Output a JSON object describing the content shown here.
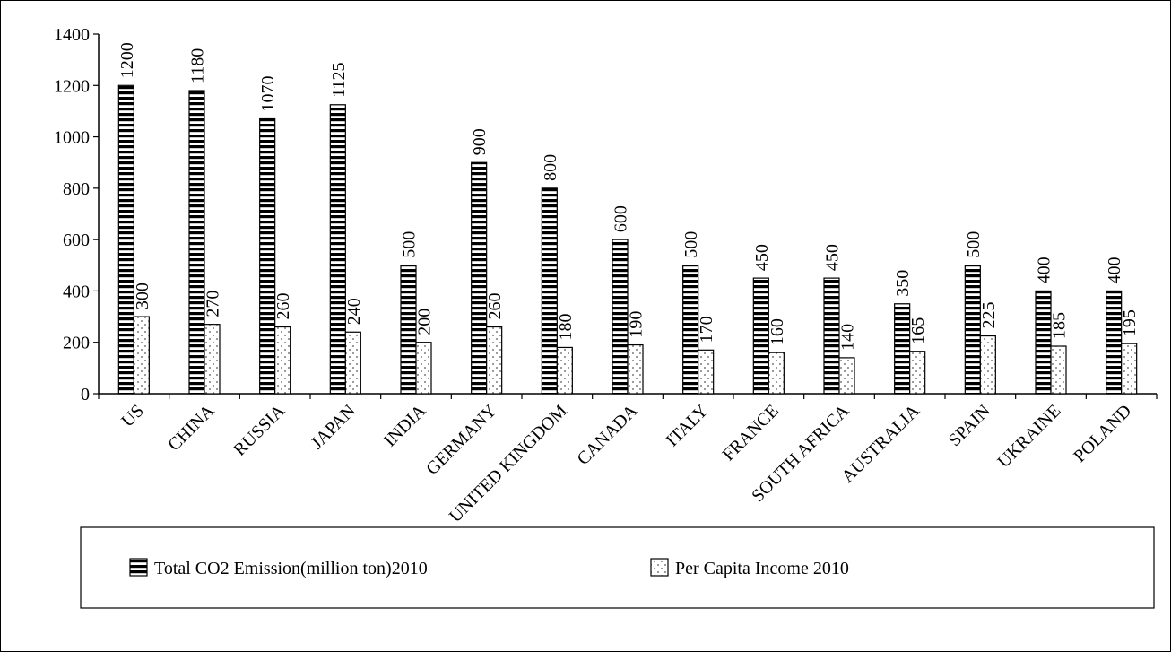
{
  "chart_data": {
    "type": "bar",
    "title": "",
    "xlabel": "",
    "ylabel": "",
    "ylim": [
      0,
      1400
    ],
    "yticks": [
      0,
      200,
      400,
      600,
      800,
      1000,
      1200,
      1400
    ],
    "grid": false,
    "legend_position": "bottom",
    "categories": [
      "US",
      "CHINA",
      "RUSSIA",
      "JAPAN",
      "INDIA",
      "GERMANY",
      "UNITED KINGDOM",
      "CANADA",
      "ITALY",
      "FRANCE",
      "SOUTH AFRICA",
      "AUSTRALIA",
      "SPAIN",
      "UKRAINE",
      "POLAND"
    ],
    "series": [
      {
        "name": "Total CO2 Emission(million ton)2010",
        "pattern": "horizontal-stripes",
        "values": [
          1200,
          1180,
          1070,
          1125,
          500,
          900,
          800,
          600,
          500,
          450,
          450,
          350,
          500,
          400,
          400
        ]
      },
      {
        "name": "Per Capita Income 2010",
        "pattern": "dots",
        "values": [
          300,
          270,
          260,
          240,
          200,
          260,
          180,
          190,
          170,
          160,
          140,
          165,
          225,
          185,
          195
        ]
      }
    ]
  }
}
